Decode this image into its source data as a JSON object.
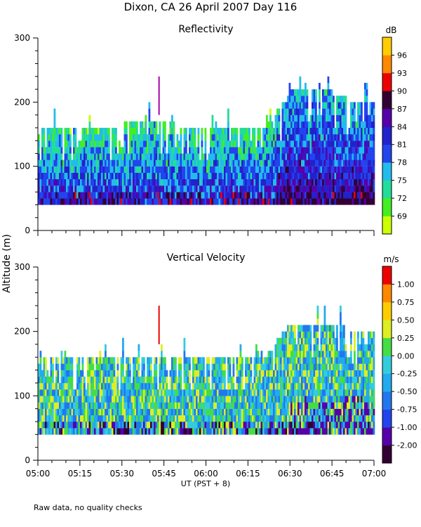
{
  "figure": {
    "title": "Dixon, CA 26 April 2007  Day 116",
    "footnote": "Raw data, no quality checks",
    "ylabel": "Altitude  (m)",
    "xlabel": "UT  (PST + 8)"
  },
  "chart_data": [
    {
      "type": "heatmap",
      "title": "Reflectivity",
      "colorbar_unit": "dB",
      "colorbar_ticks": [
        "69",
        "72",
        "75",
        "78",
        "81",
        "84",
        "87",
        "90",
        "93",
        "96"
      ],
      "colorbar_colors": [
        "#ccff00",
        "#44ee22",
        "#22dd99",
        "#22bbee",
        "#2244ee",
        "#2222cc",
        "#5500aa",
        "#330033",
        "#ee0000",
        "#ff8800",
        "#ffcc00"
      ],
      "x_tick_labels": [
        "05:00",
        "05:15",
        "05:30",
        "05:45",
        "06:00",
        "06:15",
        "06:30",
        "06:45",
        "07:00"
      ],
      "x_range_minutes": [
        0,
        120
      ],
      "y_tick_labels": [
        "0",
        "100",
        "200",
        "300"
      ],
      "ylim": [
        0,
        300
      ],
      "data_floor_m": 40,
      "echo_top_m": [
        {
          "minute": 0,
          "top": 150
        },
        {
          "minute": 10,
          "top": 160
        },
        {
          "minute": 20,
          "top": 150
        },
        {
          "minute": 30,
          "top": 160
        },
        {
          "minute": 40,
          "top": 170
        },
        {
          "minute": 50,
          "top": 160
        },
        {
          "minute": 60,
          "top": 160
        },
        {
          "minute": 70,
          "top": 160
        },
        {
          "minute": 80,
          "top": 150
        },
        {
          "minute": 90,
          "top": 210
        },
        {
          "minute": 100,
          "top": 220
        },
        {
          "minute": 110,
          "top": 200
        },
        {
          "minute": 120,
          "top": 200
        }
      ]
    },
    {
      "type": "heatmap",
      "title": "Vertical Velocity",
      "colorbar_unit": "m/s",
      "colorbar_ticks": [
        "-2.00",
        "-1.00",
        "-0.75",
        "-0.50",
        "-0.25",
        "0.00",
        "0.25",
        "0.50",
        "0.75",
        "1.00"
      ],
      "colorbar_colors": [
        "#330033",
        "#5500aa",
        "#2244ee",
        "#2277ee",
        "#22aaee",
        "#33ccdd",
        "#44dd44",
        "#ddee22",
        "#ffcc00",
        "#ff8800",
        "#ee0000"
      ],
      "x_tick_labels": [
        "05:00",
        "05:15",
        "05:30",
        "05:45",
        "06:00",
        "06:15",
        "06:30",
        "06:45",
        "07:00"
      ],
      "x_range_minutes": [
        0,
        120
      ],
      "y_tick_labels": [
        "0",
        "100",
        "200",
        "300"
      ],
      "ylim": [
        0,
        300
      ],
      "data_floor_m": 40,
      "echo_top_m": [
        {
          "minute": 0,
          "top": 150
        },
        {
          "minute": 10,
          "top": 160
        },
        {
          "minute": 20,
          "top": 150
        },
        {
          "minute": 30,
          "top": 160
        },
        {
          "minute": 40,
          "top": 160
        },
        {
          "minute": 50,
          "top": 150
        },
        {
          "minute": 60,
          "top": 160
        },
        {
          "minute": 70,
          "top": 160
        },
        {
          "minute": 80,
          "top": 150
        },
        {
          "minute": 90,
          "top": 210
        },
        {
          "minute": 100,
          "top": 210
        },
        {
          "minute": 110,
          "top": 200
        },
        {
          "minute": 120,
          "top": 200
        }
      ]
    }
  ]
}
